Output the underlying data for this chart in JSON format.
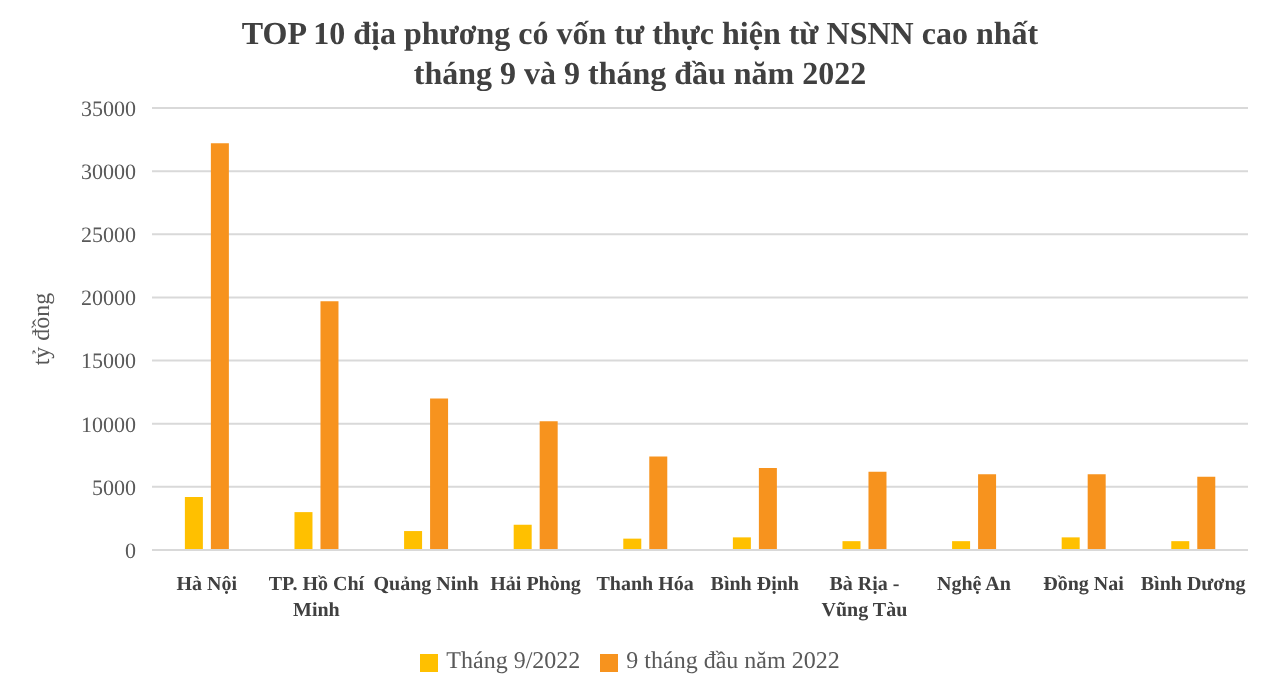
{
  "chart_data": {
    "type": "bar",
    "title": "TOP 10 địa phương có vốn tư thực hiện từ NSNN cao nhất tháng 9 và 9 tháng đầu năm 2022",
    "ylabel": "tỷ đồng",
    "categories": [
      "Hà Nội",
      "TP. Hồ Chí Minh",
      "Quảng Ninh",
      "Hải Phòng",
      "Thanh Hóa",
      "Bình Định",
      "Bà Rịa - Vũng Tàu",
      "Nghệ An",
      "Đồng Nai",
      "Bình Dương"
    ],
    "series": [
      {
        "name": "Tháng 9/2022",
        "color": "#ffc000",
        "values": [
          4200,
          3000,
          1500,
          2000,
          900,
          1000,
          700,
          700,
          1000,
          700
        ]
      },
      {
        "name": "9 tháng đầu năm 2022",
        "color": "#f7931e",
        "values": [
          32200,
          19700,
          12000,
          10200,
          7400,
          6500,
          6200,
          6000,
          6000,
          5800
        ]
      }
    ],
    "ylim": [
      0,
      35000
    ],
    "yticks": [
      0,
      5000,
      10000,
      15000,
      20000,
      25000,
      30000,
      35000
    ],
    "grid": "y",
    "legend": "bottom"
  }
}
